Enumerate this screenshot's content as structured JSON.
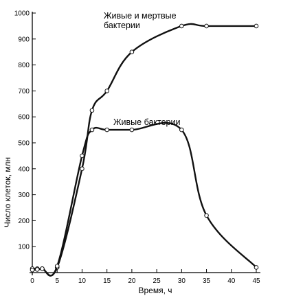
{
  "chart_data": {
    "type": "line",
    "xlabel": "Время, ч",
    "ylabel": "Число клеток, млн",
    "xlim": [
      0,
      45
    ],
    "ylim": [
      0,
      1000
    ],
    "xticks": [
      0,
      5,
      10,
      15,
      20,
      25,
      30,
      35,
      40,
      45
    ],
    "yticks": [
      100,
      200,
      300,
      400,
      500,
      600,
      700,
      800,
      900,
      1000
    ],
    "grid": false,
    "legend": "none",
    "series": [
      {
        "name": "Живые и мертвые бактерии",
        "label_lines": [
          "Живые и мертвые",
          "бактерии"
        ],
        "x": [
          0,
          1,
          2,
          5,
          10,
          12,
          15,
          20,
          30,
          35,
          45
        ],
        "y": [
          15,
          15,
          15,
          20,
          400,
          625,
          700,
          850,
          950,
          950,
          950
        ]
      },
      {
        "name": "Живые бактерии",
        "label_lines": [
          "Живые бактерии"
        ],
        "x": [
          0,
          1,
          2,
          5,
          10,
          12,
          15,
          20,
          30,
          35,
          45
        ],
        "y": [
          10,
          12,
          15,
          25,
          450,
          550,
          550,
          550,
          550,
          220,
          20
        ]
      }
    ]
  }
}
